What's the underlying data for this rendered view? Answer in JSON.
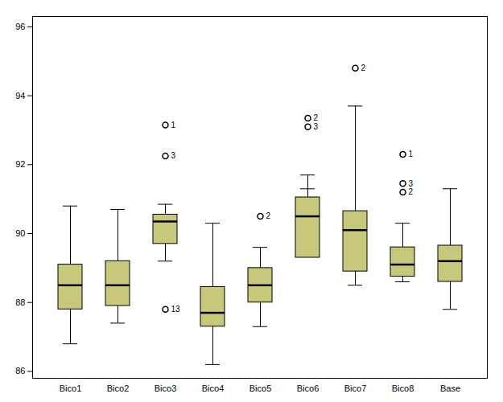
{
  "chart_data": {
    "type": "box",
    "categories": [
      "Bico1",
      "Bico2",
      "Bico3",
      "Bico4",
      "Bico5",
      "Bico6",
      "Bico7",
      "Bico8",
      "Base"
    ],
    "boxes": [
      {
        "whisker_low": 86.8,
        "q1": 87.8,
        "median": 88.5,
        "q3": 89.1,
        "whisker_high": 90.8,
        "outliers": [],
        "outlier_labels": []
      },
      {
        "whisker_low": 87.4,
        "q1": 87.9,
        "median": 88.5,
        "q3": 89.2,
        "whisker_high": 90.7,
        "outliers": [],
        "outlier_labels": []
      },
      {
        "whisker_low": 89.2,
        "q1": 89.7,
        "median": 90.35,
        "q3": 90.55,
        "whisker_high": 90.85,
        "outliers": [
          93.15,
          92.25,
          87.8
        ],
        "outlier_labels": [
          "1",
          "3",
          "13"
        ]
      },
      {
        "whisker_low": 86.2,
        "q1": 87.3,
        "median": 87.7,
        "q3": 88.45,
        "whisker_high": 90.3,
        "outliers": [],
        "outlier_labels": []
      },
      {
        "whisker_low": 87.3,
        "q1": 88.0,
        "median": 88.5,
        "q3": 89.0,
        "whisker_high": 89.6,
        "outliers": [
          90.5
        ],
        "outlier_labels": [
          "2"
        ]
      },
      {
        "whisker_low": 91.3,
        "q1": 89.3,
        "median": 90.5,
        "q3": 91.05,
        "whisker_high": 91.7,
        "outliers": [
          93.35,
          93.1
        ],
        "outlier_labels": [
          "2",
          "3"
        ]
      },
      {
        "whisker_low": 88.5,
        "q1": 88.9,
        "median": 90.1,
        "q3": 90.65,
        "whisker_high": 93.7,
        "outliers": [
          94.8
        ],
        "outlier_labels": [
          "2"
        ]
      },
      {
        "whisker_low": 88.6,
        "q1": 88.75,
        "median": 89.1,
        "q3": 89.6,
        "whisker_high": 90.3,
        "outliers": [
          92.3,
          91.45,
          91.2
        ],
        "outlier_labels": [
          "1",
          "3",
          "2"
        ]
      },
      {
        "whisker_low": 87.8,
        "q1": 88.6,
        "median": 89.2,
        "q3": 89.65,
        "whisker_high": 91.3,
        "outliers": [],
        "outlier_labels": []
      }
    ],
    "ylim": [
      85.8,
      96.3
    ],
    "yticks": [
      86,
      88,
      90,
      92,
      94,
      96
    ],
    "color": "#c8c87a",
    "grid": false
  }
}
